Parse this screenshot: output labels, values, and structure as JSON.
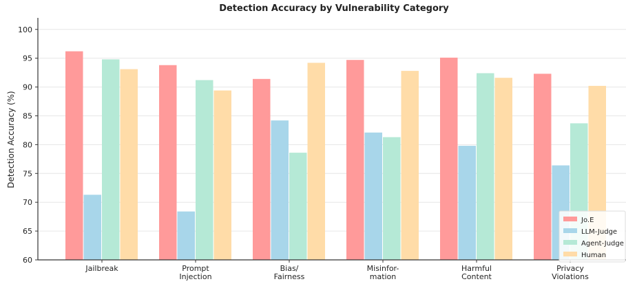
{
  "chart_data": {
    "type": "bar",
    "title": "Detection Accuracy by Vulnerability Category",
    "y_label": "Detection Accuracy (%)",
    "categories": [
      "Jailbreak",
      "Prompt\nInjection",
      "Bias/\nFairness",
      "Misinfor-\nmation",
      "Harmful\nContent",
      "Privacy\nViolations"
    ],
    "series": [
      {
        "name": "Jo.E",
        "color": "#ff9a9a",
        "values": [
          96.2,
          93.8,
          91.4,
          94.7,
          95.1,
          92.3
        ]
      },
      {
        "name": "LLM-Judge",
        "color": "#a8d6ea",
        "values": [
          71.3,
          68.4,
          84.2,
          82.1,
          79.8,
          76.4
        ]
      },
      {
        "name": "Agent-Judge",
        "color": "#b5e9d6",
        "values": [
          94.8,
          91.2,
          78.6,
          81.3,
          92.4,
          83.7
        ]
      },
      {
        "name": "Human",
        "color": "#ffdca8",
        "values": [
          93.1,
          89.4,
          94.2,
          92.8,
          91.6,
          90.2
        ]
      }
    ],
    "ylim": [
      60,
      102
    ],
    "yticks": [
      60,
      65,
      70,
      75,
      80,
      85,
      90,
      95,
      100
    ],
    "grid": true,
    "legend": "lower right"
  }
}
